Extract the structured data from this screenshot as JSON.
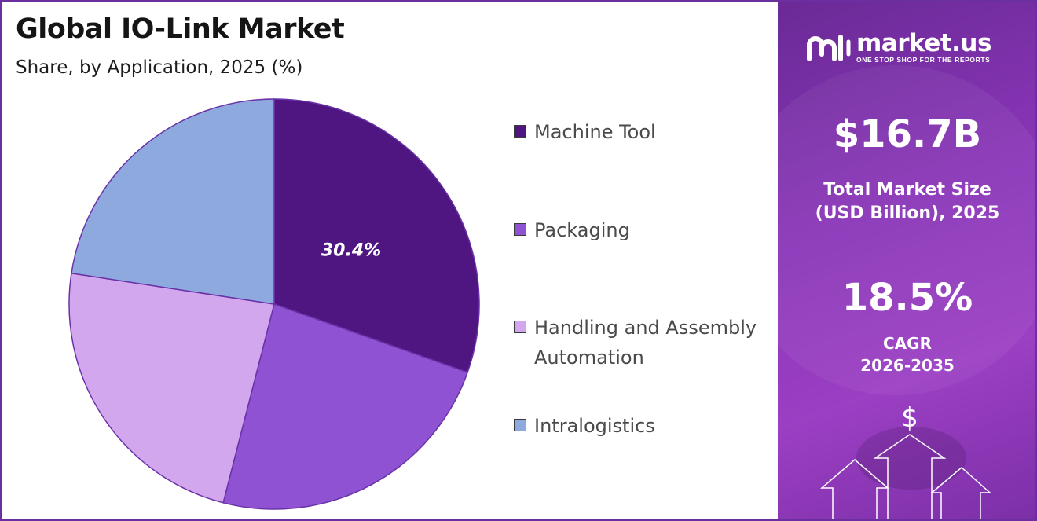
{
  "header": {
    "title": "Global IO-Link Market",
    "subtitle": "Share, by Application, 2025 (%)"
  },
  "chart_data": {
    "type": "pie",
    "title": "Global IO-Link Market",
    "subtitle": "Share, by Application, 2025 (%)",
    "legend_position": "right",
    "slices": [
      {
        "label": "Machine Tool",
        "value": 30.4,
        "color": "#4f1682",
        "data_label": "30.4%"
      },
      {
        "label": "Packaging",
        "value": 23.6,
        "color": "#8e52d2",
        "data_label": ""
      },
      {
        "label": "Handling and Assembly Automation",
        "value": 23.4,
        "color": "#d3a7ed",
        "data_label": ""
      },
      {
        "label": "Intralogistics",
        "value": 22.6,
        "color": "#8ea9dd",
        "data_label": ""
      }
    ]
  },
  "legend": {
    "items": [
      {
        "label": "Machine Tool",
        "color": "#4f1682"
      },
      {
        "label": "Packaging",
        "color": "#8e52d2"
      },
      {
        "label": "Handling and Assembly Automation",
        "color": "#d3a7ed"
      },
      {
        "label": "Intralogistics",
        "color": "#8ea9dd"
      }
    ]
  },
  "sidebar": {
    "brand": "market.us",
    "tagline": "ONE STOP SHOP FOR THE REPORTS",
    "market_size": "$16.7B",
    "market_size_caption_1": "Total Market Size",
    "market_size_caption_2": "(USD Billion), 2025",
    "cagr": "18.5%",
    "cagr_caption_1": "CAGR",
    "cagr_caption_2": "2026-2035",
    "dollar_symbol": "$"
  },
  "colors": {
    "panel": "#8a35b8",
    "border": "#6b2fa0"
  }
}
